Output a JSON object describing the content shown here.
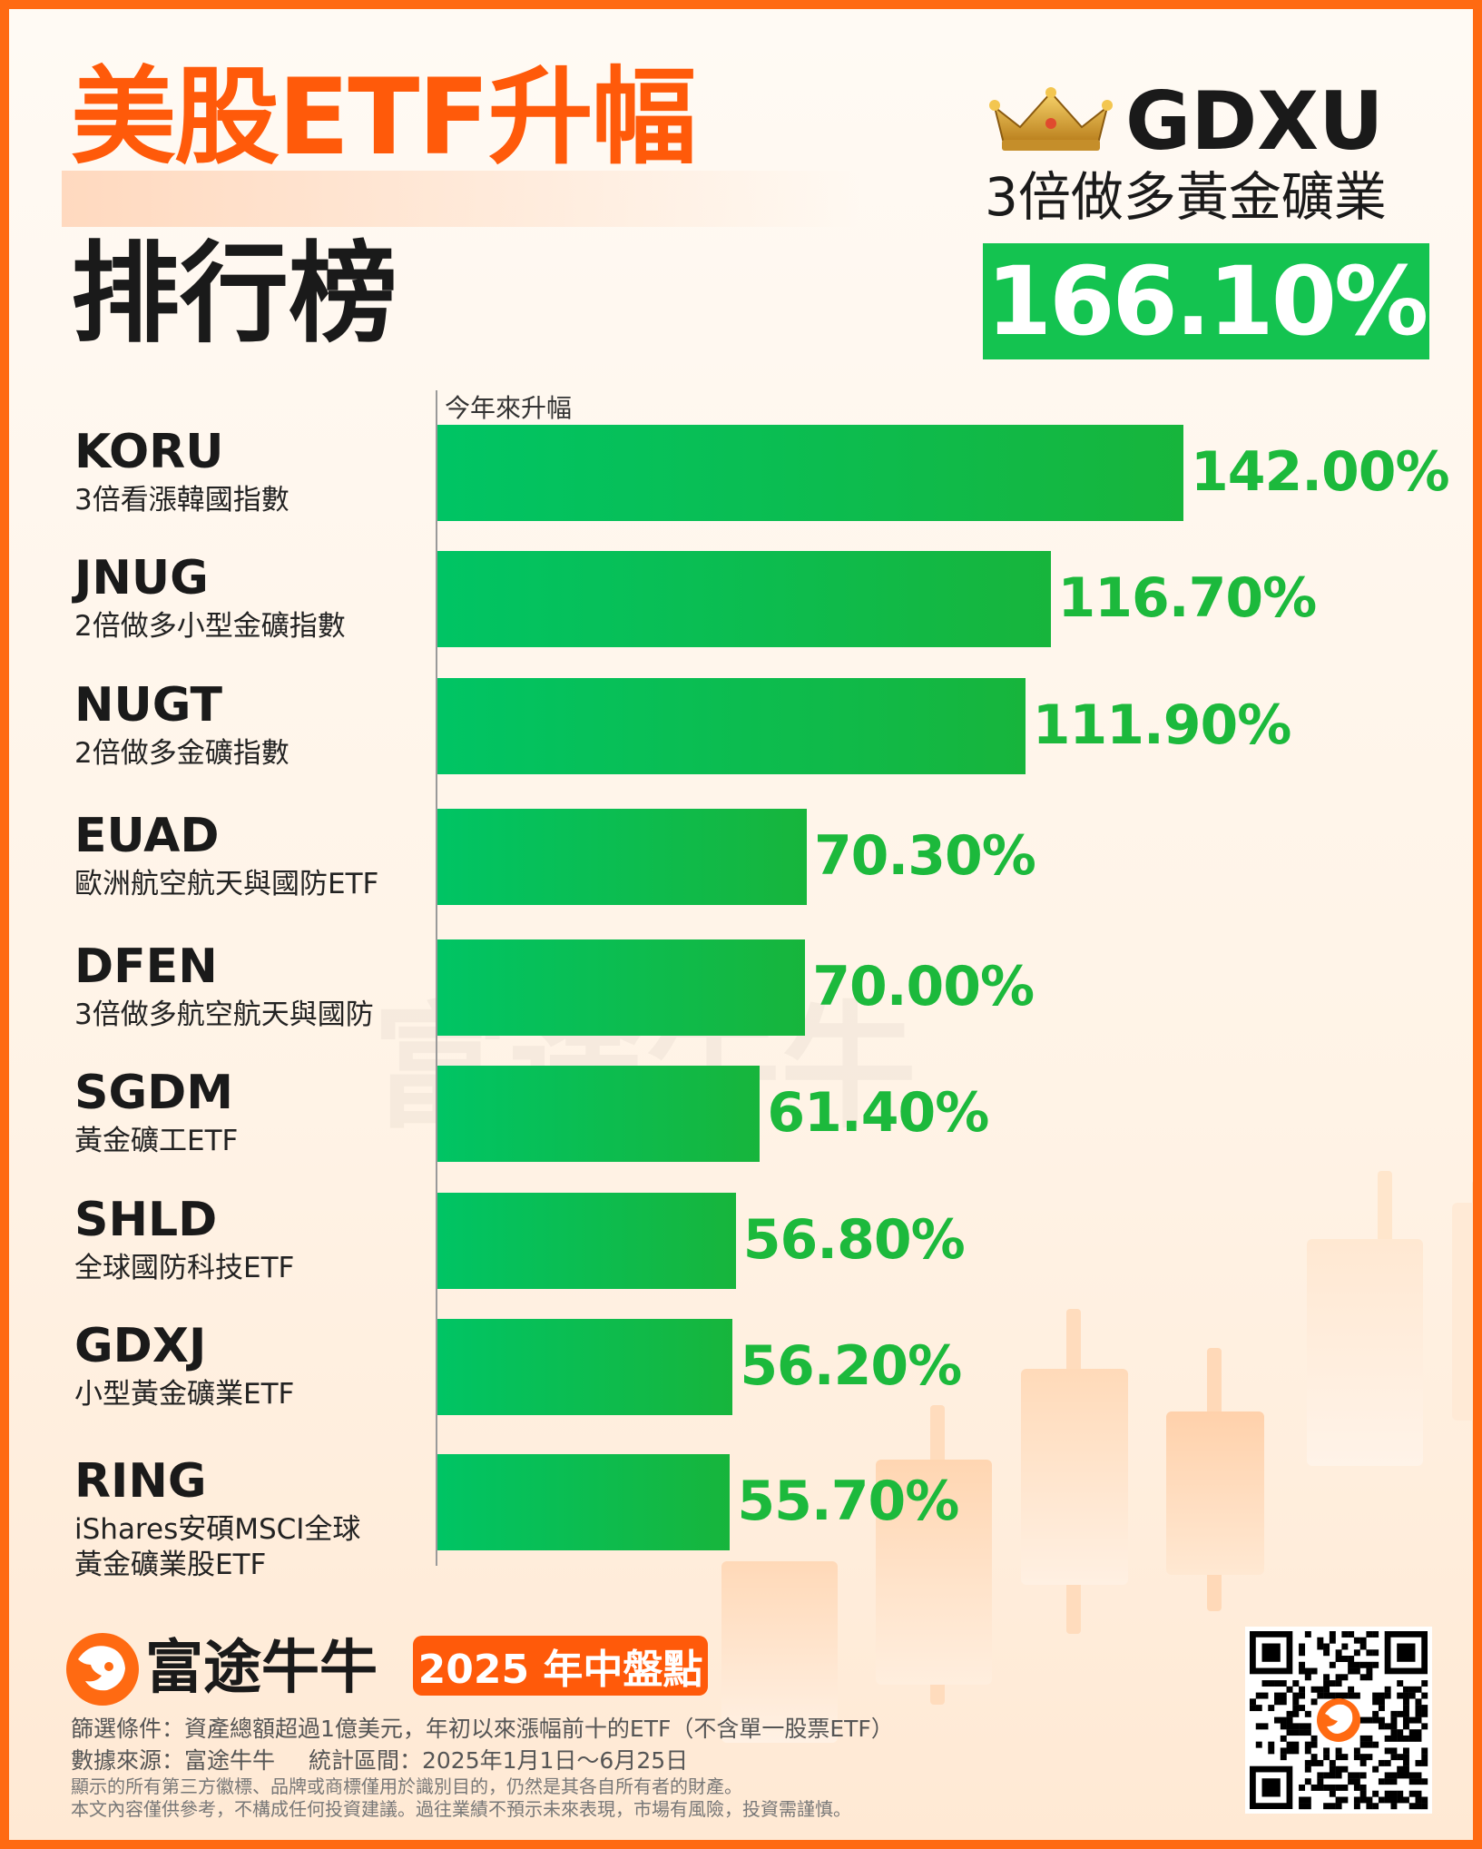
{
  "header": {
    "title_line1": "美股ETF升幅",
    "title_line2": "排行榜"
  },
  "top_pick": {
    "icon": "crown-icon",
    "ticker": "GDXU",
    "name": "3倍做多黃金礦業",
    "value": "166.10%"
  },
  "chart_data": {
    "type": "bar",
    "orientation": "horizontal",
    "xlabel": "今年來升幅",
    "categories": [
      "KORU",
      "JNUG",
      "NUGT",
      "EUAD",
      "DFEN",
      "SGDM",
      "SHLD",
      "GDXJ",
      "RING"
    ],
    "descriptions": [
      "3倍看漲韓國指數",
      "2倍做多小型金礦指數",
      "2倍做多金礦指數",
      "歐洲航空航天與國防ETF",
      "3倍做多航空航天與國防",
      "黃金礦工ETF",
      "全球國防科技ETF",
      "小型黃金礦業ETF",
      "iShares安碩MSCI全球黃金礦業股ETF"
    ],
    "values": [
      142.0,
      116.7,
      111.9,
      70.3,
      70.0,
      61.4,
      56.8,
      56.2,
      55.7
    ],
    "value_labels": [
      "142.00%",
      "116.70%",
      "111.90%",
      "70.30%",
      "70.00%",
      "61.40%",
      "56.80%",
      "56.20%",
      "55.70%"
    ],
    "unit": "%",
    "bar_color": "#14c350",
    "label_color": "#1cb93c"
  },
  "watermark": "富途牛牛",
  "footer": {
    "logo_text": "富途牛牛",
    "badge": "2025 年中盤點",
    "criteria": "篩選條件：資產總額超過1億美元，年初以來漲幅前十的ETF（不含單一股票ETF）",
    "source": "數據來源：富途牛牛",
    "period": "統計區間：2025年1月1日～6月25日",
    "disclaimer1": "顯示的所有第三方徽標、品牌或商標僅用於識別目的，仍然是其各自所有者的財產。",
    "disclaimer2": "本文內容僅供參考，不構成任何投資建議。過往業績不預示未來表現，市場有風險，投資需謹慎。",
    "qr_icon": "qr-code-icon"
  },
  "colors": {
    "accent": "#ff6a12",
    "green": "#14c350"
  }
}
